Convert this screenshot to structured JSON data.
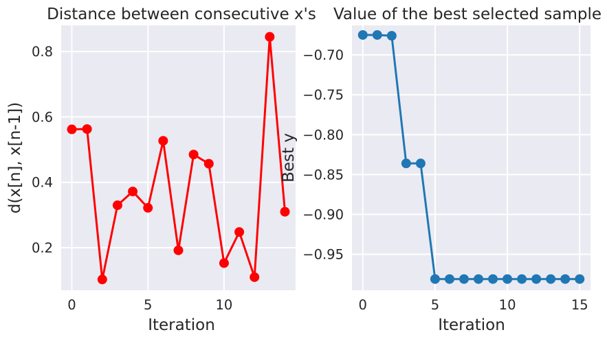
{
  "chart_data": [
    {
      "type": "line",
      "title": "Distance between consecutive x's",
      "xlabel": "Iteration",
      "ylabel": "d(x[n], x[n-1])",
      "xlim": [
        -0.7,
        14.7
      ],
      "ylim": [
        0.07,
        0.88
      ],
      "xticks": [
        0,
        5,
        10
      ],
      "yticks": [
        0.2,
        0.4,
        0.6,
        0.8
      ],
      "ytick_labels": [
        "0.2",
        "0.4",
        "0.6",
        "0.8"
      ],
      "grid": true,
      "color": "#ff0000",
      "x": [
        0,
        1,
        2,
        3,
        4,
        5,
        6,
        7,
        8,
        9,
        10,
        11,
        12,
        13,
        14
      ],
      "y": [
        0.562,
        0.563,
        0.103,
        0.33,
        0.372,
        0.322,
        0.527,
        0.192,
        0.485,
        0.457,
        0.153,
        0.248,
        0.11,
        0.845,
        0.31
      ]
    },
    {
      "type": "line",
      "title": "Value of the best selected sample",
      "xlabel": "Iteration",
      "ylabel": "Best y",
      "xlim": [
        -0.75,
        15.75
      ],
      "ylim": [
        -0.995,
        -0.663
      ],
      "xticks": [
        0,
        5,
        10,
        15
      ],
      "yticks": [
        -0.95,
        -0.9,
        -0.85,
        -0.8,
        -0.75,
        -0.7
      ],
      "ytick_labels": [
        "−0.95",
        "−0.90",
        "−0.85",
        "−0.80",
        "−0.75",
        "−0.70"
      ],
      "grid": true,
      "color": "#1f77b4",
      "x": [
        0,
        1,
        2,
        3,
        4,
        5,
        6,
        7,
        8,
        9,
        10,
        11,
        12,
        13,
        14,
        15
      ],
      "y": [
        -0.675,
        -0.675,
        -0.676,
        -0.836,
        -0.836,
        -0.981,
        -0.981,
        -0.981,
        -0.981,
        -0.981,
        -0.981,
        -0.981,
        -0.981,
        -0.981,
        -0.981,
        -0.981
      ]
    }
  ]
}
